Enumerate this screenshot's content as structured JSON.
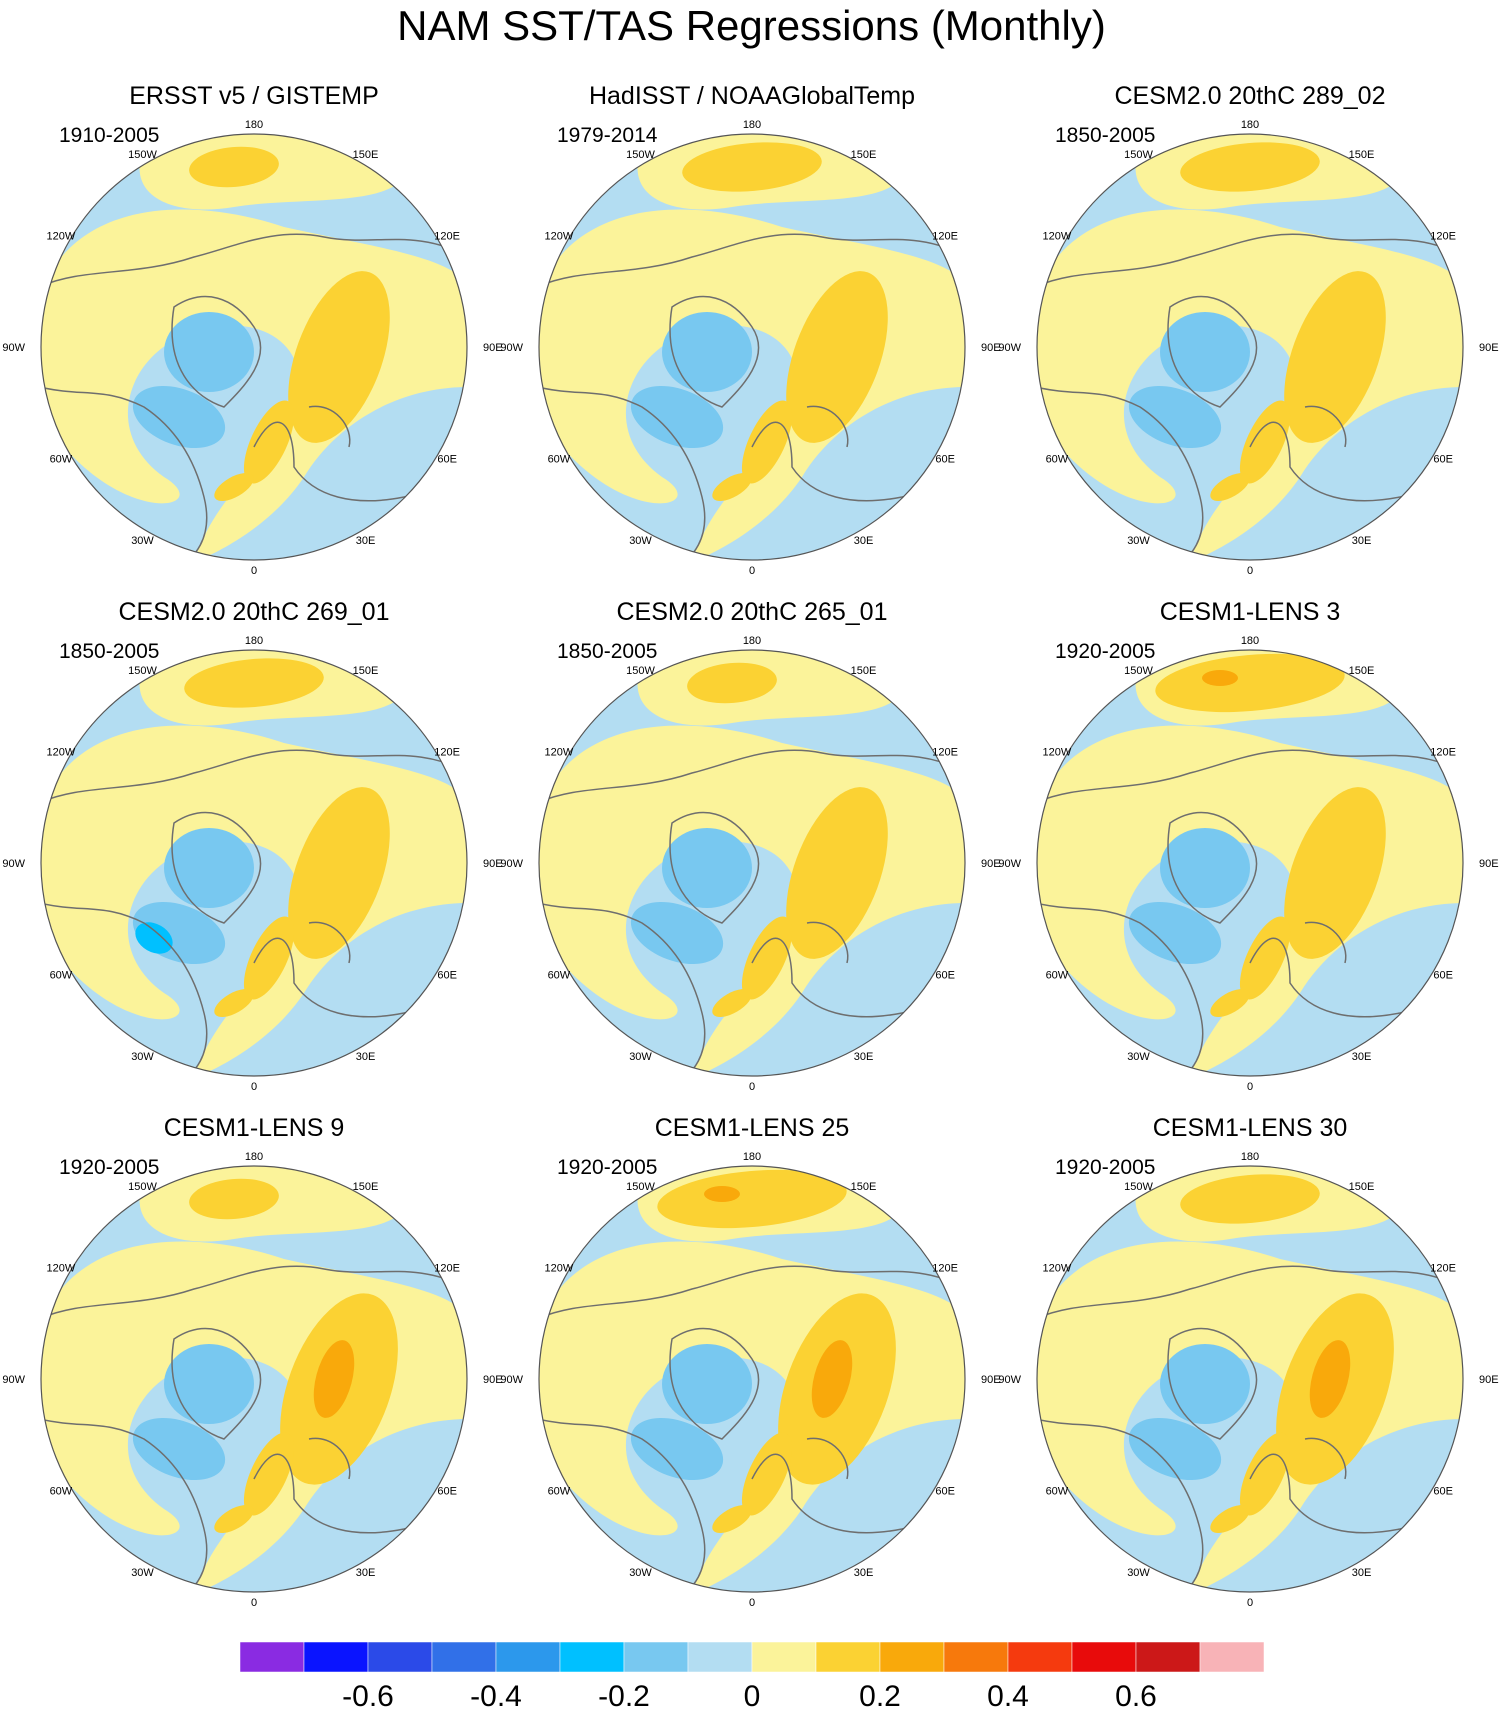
{
  "title": "NAM SST/TAS Regressions (Monthly)",
  "colors": {
    "palette": [
      "#8a2be2",
      "#0a14ff",
      "#2b4ae8",
      "#3170e8",
      "#2c98ec",
      "#00c0ff",
      "#78c8f0",
      "#b3ddf2",
      "#fbf39a",
      "#fbd233",
      "#f9a90b",
      "#f7790c",
      "#f53a0e",
      "#e80b0b",
      "#cc1818",
      "#f8b3b7"
    ],
    "coastline": "#6e6e6e"
  },
  "lon_labels": [
    "180",
    "150E",
    "120E",
    "90E",
    "60E",
    "30E",
    "0",
    "30W",
    "60W",
    "90W",
    "120W",
    "150W"
  ],
  "panels": [
    {
      "title": "ERSST v5 / GISTEMP",
      "period": "1910-2005"
    },
    {
      "title": "HadISST / NOAAGlobalTemp",
      "period": "1979-2014"
    },
    {
      "title": "CESM2.0 20thC 289_02",
      "period": "1850-2005"
    },
    {
      "title": "CESM2.0 20thC 269_01",
      "period": "1850-2005"
    },
    {
      "title": "CESM2.0 20thC 265_01",
      "period": "1850-2005"
    },
    {
      "title": "CESM1-LENS 3",
      "period": "1920-2005"
    },
    {
      "title": "CESM1-LENS 9",
      "period": "1920-2005"
    },
    {
      "title": "CESM1-LENS 25",
      "period": "1920-2005"
    },
    {
      "title": "CESM1-LENS 30",
      "period": "1920-2005"
    }
  ],
  "colorbar": {
    "labels": [
      "-0.6",
      "-0.4",
      "-0.2",
      "0",
      "0.2",
      "0.4",
      "0.6"
    ]
  }
}
